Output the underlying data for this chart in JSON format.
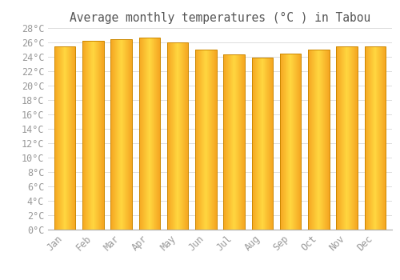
{
  "title": "Average monthly temperatures (°C ) in Tabou",
  "months": [
    "Jan",
    "Feb",
    "Mar",
    "Apr",
    "May",
    "Jun",
    "Jul",
    "Aug",
    "Sep",
    "Oct",
    "Nov",
    "Dec"
  ],
  "values": [
    25.5,
    26.2,
    26.5,
    26.7,
    26.0,
    25.0,
    24.3,
    23.9,
    24.4,
    25.0,
    25.5,
    25.4
  ],
  "bar_color_center": "#FFD740",
  "bar_color_edge": "#F5A623",
  "bar_outline_color": "#CC8800",
  "ylim": [
    0,
    28
  ],
  "ytick_step": 2,
  "background_color": "#FFFFFF",
  "grid_color": "#DDDDDD",
  "title_fontsize": 10.5,
  "tick_fontsize": 8.5,
  "tick_color": "#999999",
  "bar_width": 0.75
}
